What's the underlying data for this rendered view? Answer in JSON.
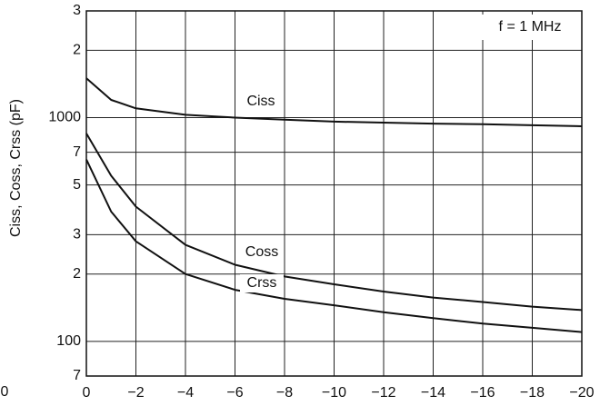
{
  "chart_data": {
    "type": "line",
    "y_label": "Ciss, Coss, Crss (pF)",
    "annotations": [
      "f = 1 MHz",
      "0"
    ],
    "log_y": true,
    "grid": true,
    "xlim": [
      0,
      -20
    ],
    "xticks": [
      0,
      {
        "value": -2,
        "label": "−2"
      },
      {
        "value": -4,
        "label": "−4"
      },
      {
        "value": -6,
        "label": "−6"
      },
      {
        "value": -8,
        "label": "−8"
      },
      {
        "value": -10,
        "label": "−10"
      },
      {
        "value": -12,
        "label": "−12"
      },
      {
        "value": -14,
        "label": "−14"
      },
      {
        "value": -16,
        "label": "−16"
      },
      {
        "value": -18,
        "label": "−18"
      },
      {
        "value": -20,
        "label": "−20"
      }
    ],
    "ylim": [
      70,
      3000
    ],
    "yticks": [
      {
        "value": 3000,
        "label": "3"
      },
      {
        "value": 2000,
        "label": "2"
      },
      1000,
      {
        "value": 700,
        "label": "7"
      },
      {
        "value": 500,
        "label": "5"
      },
      {
        "value": 300,
        "label": "3"
      },
      {
        "value": 200,
        "label": "2"
      },
      100,
      {
        "value": 70,
        "label": "7"
      }
    ],
    "series": [
      {
        "name": "Ciss",
        "color": "#111111",
        "x": [
          0,
          -1,
          -2,
          -4,
          -6,
          -8,
          -10,
          -12,
          -14,
          -16,
          -18,
          -20
        ],
        "values": [
          1500,
          1200,
          1100,
          1030,
          1000,
          980,
          960,
          950,
          940,
          935,
          925,
          915
        ]
      },
      {
        "name": "Coss",
        "color": "#111111",
        "x": [
          0,
          -1,
          -2,
          -4,
          -6,
          -8,
          -10,
          -12,
          -14,
          -16,
          -18,
          -20
        ],
        "values": [
          850,
          550,
          400,
          270,
          220,
          195,
          180,
          167,
          157,
          150,
          143,
          138
        ]
      },
      {
        "name": "Crss",
        "color": "#111111",
        "x": [
          0,
          -1,
          -2,
          -4,
          -6,
          -8,
          -10,
          -12,
          -14,
          -16,
          -18,
          -20
        ],
        "values": [
          650,
          380,
          280,
          200,
          170,
          155,
          145,
          135,
          127,
          120,
          115,
          110
        ]
      }
    ]
  }
}
